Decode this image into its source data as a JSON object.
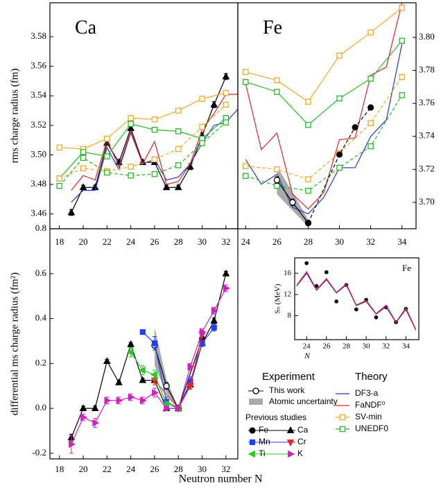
{
  "chart_data": [
    {
      "type": "line",
      "panel_label": "Ca",
      "ylabel": "rms charge radius (fm)",
      "xlim": [
        17.2,
        33
      ],
      "ylim": [
        3.45,
        3.603
      ],
      "xticks": [
        18,
        20,
        22,
        24,
        26,
        28,
        30,
        32
      ],
      "yticks": [
        3.46,
        3.48,
        {
          "value": 3.5,
          "label": "3.50"
        },
        3.52,
        3.54,
        3.56,
        3.58
      ],
      "series": [
        {
          "color": "#000000",
          "marker": "triangle",
          "x": [
            19,
            20,
            21,
            22,
            23,
            24,
            25,
            26,
            27,
            28,
            29,
            30,
            31,
            32
          ],
          "values": [
            3.461,
            3.478,
            3.478,
            3.508,
            3.495,
            3.518,
            3.495,
            3.495,
            3.478,
            3.478,
            3.492,
            3.513,
            3.534,
            3.553
          ],
          "errors": [
            0.002,
            0.0015,
            0.0015,
            0.0015,
            0.0015,
            0.0015,
            0.0015,
            0.0015,
            0.0015,
            0.0015,
            0.002,
            0.002,
            0.002,
            0.002
          ]
        },
        {
          "name": "DF3-a",
          "color": "#2233cc",
          "x": [
            19,
            20,
            21,
            22,
            23,
            24,
            25,
            26,
            27,
            28,
            29,
            30,
            31,
            32,
            33
          ],
          "values": [
            3.468,
            3.476,
            3.476,
            3.505,
            3.49,
            3.515,
            3.494,
            3.497,
            3.483,
            3.485,
            3.494,
            3.508,
            3.52,
            3.522,
            3.531
          ]
        },
        {
          "name": "FaNDF⁰",
          "color": "#e0202a",
          "x": [
            19,
            20,
            21,
            22,
            23,
            24,
            25,
            26,
            27,
            28,
            29,
            30,
            31,
            32,
            33
          ],
          "values": [
            3.476,
            3.486,
            3.483,
            3.51,
            3.492,
            3.516,
            3.494,
            3.509,
            3.48,
            3.482,
            3.494,
            3.517,
            3.528,
            3.541,
            3.541
          ]
        },
        {
          "name": "SV-min",
          "color": "#f5a623",
          "marker": "open-square",
          "x": [
            18,
            20,
            22,
            24,
            26,
            28,
            30,
            32
          ],
          "values": [
            3.505,
            3.504,
            3.511,
            3.525,
            3.524,
            3.53,
            3.538,
            3.542
          ]
        },
        {
          "name": "UNEDF0",
          "color": "#22bb22",
          "marker": "open-square",
          "x": [
            18,
            20,
            22,
            24,
            26,
            28,
            30,
            32
          ],
          "values": [
            3.484,
            3.502,
            3.499,
            3.521,
            3.517,
            3.516,
            3.511,
            3.525
          ]
        },
        {
          "color": "#f5a623",
          "marker": "open-square",
          "dash": true,
          "x": [
            18,
            20,
            22,
            24,
            26,
            28,
            30,
            32
          ],
          "values": [
            3.484,
            3.491,
            3.489,
            3.492,
            3.497,
            3.504,
            3.519,
            3.534
          ]
        },
        {
          "color": "#22bb22",
          "marker": "open-square",
          "dash": true,
          "x": [
            18,
            20,
            22,
            24,
            26,
            28,
            30,
            32
          ],
          "values": [
            3.479,
            3.498,
            3.488,
            3.486,
            3.487,
            3.493,
            3.508,
            3.522
          ]
        }
      ]
    },
    {
      "type": "line",
      "panel_label": "Fe",
      "y_axis_position": "right",
      "xlim": [
        23.5,
        34.9
      ],
      "ylim": [
        3.684,
        3.821
      ],
      "xticks": [
        24,
        26,
        28,
        30,
        32,
        34
      ],
      "yticks": [
        {
          "value": 3.7,
          "label": "3.70"
        },
        3.72,
        3.74,
        3.76,
        3.78,
        {
          "value": 3.8,
          "label": "3.80"
        }
      ],
      "band": {
        "color": "#aaaaaa",
        "x": [
          26,
          27,
          28
        ],
        "lower": [
          3.705,
          3.695,
          3.6855
        ],
        "upper": [
          3.722,
          3.706,
          3.6895
        ]
      },
      "series": [
        {
          "color": "#2233cc",
          "x": [
            24,
            25,
            26,
            27,
            28,
            29,
            30,
            31,
            32,
            33,
            34
          ],
          "values": [
            3.726,
            3.711,
            3.717,
            3.697,
            3.693,
            3.703,
            3.721,
            3.721,
            3.74,
            3.75,
            3.796
          ]
        },
        {
          "color": "#e0202a",
          "x": [
            24,
            25,
            26,
            27,
            28,
            29,
            30,
            31,
            32,
            33,
            34
          ],
          "values": [
            3.772,
            3.732,
            3.742,
            3.705,
            3.696,
            3.706,
            3.738,
            3.739,
            3.777,
            3.782,
            3.821
          ]
        },
        {
          "color": "#f5a623",
          "marker": "open-square",
          "x": [
            24,
            26,
            28,
            30,
            32,
            34
          ],
          "values": [
            3.779,
            3.774,
            3.761,
            3.789,
            3.803,
            3.818
          ]
        },
        {
          "color": "#22bb22",
          "marker": "open-square",
          "x": [
            24,
            26,
            28,
            30,
            32,
            34
          ],
          "values": [
            3.773,
            3.767,
            3.747,
            3.763,
            3.775,
            3.798
          ]
        },
        {
          "color": "#f5a623",
          "marker": "open-square",
          "dash": true,
          "x": [
            24,
            26,
            28,
            30,
            32,
            34
          ],
          "values": [
            3.722,
            3.72,
            3.714,
            3.73,
            3.748,
            3.776
          ]
        },
        {
          "color": "#22bb22",
          "marker": "open-square",
          "dash": true,
          "x": [
            24,
            26,
            28,
            30,
            32,
            34
          ],
          "values": [
            3.716,
            3.71,
            3.707,
            3.721,
            3.734,
            3.765
          ]
        },
        {
          "color": "#000000",
          "marker": "open-circle",
          "x": [
            26,
            27,
            28
          ],
          "values": [
            3.7135,
            3.7,
            3.6875
          ],
          "errors": [
            0.002,
            0.002,
            0.001
          ]
        },
        {
          "color": "#000000",
          "marker": "circle",
          "dash": true,
          "x": [
            28,
            30,
            31,
            32
          ],
          "values": [
            3.6875,
            3.729,
            3.7455,
            3.7575
          ],
          "errors": [
            0.001,
            0.001,
            0.001,
            0.001
          ]
        }
      ]
    },
    {
      "type": "line",
      "ylabel": "differential ms charge radius (fm²)",
      "xlabel": "Neutron number N",
      "xlim": [
        17.2,
        33
      ],
      "ylim": [
        -0.225,
        0.8
      ],
      "xticks": [
        18,
        20,
        22,
        24,
        26,
        28,
        30,
        32
      ],
      "yticks": [
        -0.2,
        {
          "value": 0,
          "label": "0.0"
        },
        0.2,
        0.4,
        0.6,
        0.8
      ],
      "legend": {
        "experiment_title": "Experiment",
        "previous_title": "Previous studies",
        "theory_title": "Theory"
      },
      "band": {
        "name": "Atomic uncertainty",
        "color": "#aaaaaa",
        "x": [
          26,
          27,
          28
        ],
        "lower": [
          0.19,
          0.07,
          0
        ],
        "upper": [
          0.36,
          0.13,
          0
        ]
      },
      "series": [
        {
          "name": "This work",
          "color": "#000000",
          "marker": "open-circle",
          "x": [
            26,
            27,
            28
          ],
          "values": [
            0.28,
            0.1,
            0
          ],
          "errors": [
            0.02,
            0.015,
            0
          ]
        },
        {
          "name": "Fe",
          "color": "#000000",
          "marker": "circle",
          "x": [
            28,
            30
          ],
          "values": [
            0,
            0.31
          ],
          "errors": [
            0,
            0.01
          ]
        },
        {
          "name": "Ca",
          "color": "#000000",
          "marker": "triangle",
          "x": [
            19,
            20,
            21,
            22,
            23,
            24,
            25,
            26,
            27,
            28,
            29,
            30,
            31,
            32
          ],
          "values": [
            -0.13,
            0,
            0,
            0.21,
            0.115,
            0.285,
            0.125,
            0.125,
            0,
            0,
            0.105,
            0.29,
            0.39,
            0.6
          ],
          "errors": [
            0.015,
            0.01,
            0.01,
            0.008,
            0.008,
            0.008,
            0.008,
            0.008,
            0.008,
            0,
            0.008,
            0.01,
            0.012,
            0.01
          ]
        },
        {
          "name": "Mn",
          "color": "#1f3fff",
          "marker": "square",
          "x": [
            25,
            26,
            27,
            28,
            29,
            30,
            31
          ],
          "values": [
            0.34,
            0.29,
            0.03,
            0,
            0.12,
            0.29,
            0.36
          ],
          "errors": [
            0.01,
            0.03,
            0.02,
            0,
            0.02,
            0.015,
            0.015
          ]
        },
        {
          "name": "Cr",
          "color": "#ff2020",
          "marker": "down-triangle",
          "x": [
            26,
            28,
            29,
            30
          ],
          "values": [
            0.125,
            0,
            0.1,
            0.33
          ],
          "errors": [
            0.02,
            0,
            0.015,
            0.015
          ]
        },
        {
          "name": "Ti",
          "color": "#22cc22",
          "marker": "left-triangle",
          "x": [
            24,
            25,
            26,
            27,
            28
          ],
          "values": [
            0.25,
            0.17,
            0.15,
            0.02,
            0
          ],
          "errors": [
            0.02,
            0.02,
            0.02,
            0.01,
            0
          ]
        },
        {
          "name": "K",
          "color": "#d020c0",
          "marker": "right-triangle",
          "x": [
            19,
            20,
            21,
            22,
            23,
            24,
            25,
            26,
            27,
            28,
            29,
            30,
            31,
            32
          ],
          "values": [
            -0.16,
            -0.04,
            -0.065,
            0.035,
            0.035,
            0.05,
            0.035,
            0.07,
            0,
            0,
            0.185,
            0.34,
            0.435,
            0.535
          ],
          "errors": [
            0.04,
            0.015,
            0.02,
            0.015,
            0.015,
            0.015,
            0.015,
            0.02,
            0.01,
            0,
            0.015,
            0.015,
            0.015,
            0.015
          ]
        }
      ]
    },
    {
      "type": "line",
      "panel_label": "Fe",
      "xlabel": "N",
      "ylabel": "Sₙ (MeV)",
      "xlim": [
        22.8,
        35.3
      ],
      "ylim": [
        3.5,
        18.9
      ],
      "xticks": [
        24,
        26,
        28,
        30,
        32,
        34
      ],
      "yticks": [
        8,
        12,
        16
      ],
      "series": [
        {
          "color": "#000000",
          "marker": "circle",
          "line": false,
          "x": [
            24,
            25,
            26,
            27,
            28,
            29,
            30,
            31,
            32,
            33,
            34
          ],
          "values": [
            17.9,
            13.6,
            16.2,
            10.7,
            13.8,
            9.2,
            11,
            7.7,
            9.6,
            6.8,
            9.3
          ]
        },
        {
          "color": "#2233cc",
          "x": [
            23,
            24,
            25,
            26,
            27,
            28,
            29,
            30,
            31,
            32,
            33,
            34,
            35
          ],
          "values": [
            13.6,
            16,
            12.8,
            14.8,
            12.3,
            13.8,
            9.9,
            10.7,
            8.3,
            9.7,
            6.7,
            9.2,
            5.3
          ]
        },
        {
          "color": "#e0202a",
          "x": [
            23,
            24,
            25,
            26,
            27,
            28,
            29,
            30,
            31,
            32,
            33,
            34,
            35
          ],
          "values": [
            13.7,
            16.3,
            12.9,
            15,
            12.4,
            14,
            10,
            10.9,
            8.4,
            10,
            6.8,
            9.5,
            5.4
          ]
        }
      ]
    }
  ]
}
